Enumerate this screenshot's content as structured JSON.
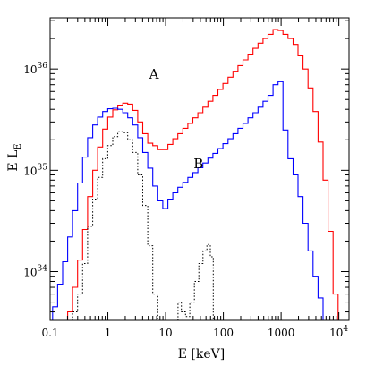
{
  "chart_data": {
    "type": "line",
    "style": "step",
    "xscale": "log",
    "yscale": "log",
    "xlabel": "E [keV]",
    "ylabel_main": "E L",
    "ylabel_sub": "E",
    "xlim": [
      0.1,
      15000
    ],
    "ylim": [
      3.3e+33,
      3.2e+36
    ],
    "xticks": [
      {
        "value": 0.1,
        "label": "0.1",
        "sup": ""
      },
      {
        "value": 1,
        "label": "1",
        "sup": ""
      },
      {
        "value": 10,
        "label": "10",
        "sup": ""
      },
      {
        "value": 100,
        "label": "100",
        "sup": ""
      },
      {
        "value": 1000,
        "label": "1000",
        "sup": ""
      },
      {
        "value": 10000,
        "label": "10",
        "sup": "4"
      }
    ],
    "yticks": [
      {
        "value": 1e+34,
        "label": "10",
        "sup": "34"
      },
      {
        "value": 1e+35,
        "label": "10",
        "sup": "35"
      },
      {
        "value": 1e+36,
        "label": "10",
        "sup": "36"
      }
    ],
    "annotations": [
      {
        "text": "A",
        "x": 6.3,
        "y": 8e+35
      },
      {
        "text": "B",
        "x": 37,
        "y": 1.05e+35
      }
    ],
    "grid": false,
    "legend": "none",
    "series": [
      {
        "color": "#ff0000",
        "style": "solid",
        "x": [
          0.1,
          0.122,
          0.149,
          0.182,
          0.222,
          0.271,
          0.331,
          0.404,
          0.494,
          0.603,
          0.736,
          0.899,
          1.1,
          1.34,
          1.64,
          2.0,
          2.44,
          2.98,
          3.64,
          4.44,
          5.43,
          6.63,
          8.09,
          9.88,
          12.1,
          14.7,
          18.0,
          22.0,
          26.8,
          32.7,
          40.0,
          48.8,
          59.6,
          72.8,
          88.9,
          109,
          133,
          162,
          198,
          242,
          295,
          360,
          440,
          537,
          656,
          801,
          978,
          1190,
          1460,
          1780,
          2170,
          2650,
          3240,
          3950,
          4830,
          5900,
          7200,
          8790,
          10700
        ],
        "y": [
          3e+33,
          3e+33,
          3e+33,
          3e+33,
          4e+33,
          7e+33,
          1.3e+34,
          2.6e+34,
          5.5e+34,
          1e+35,
          1.7e+35,
          2.55e+35,
          3.35e+35,
          3.95e+35,
          4.4e+35,
          4.6e+35,
          4.5e+35,
          3.9e+35,
          3e+35,
          2.3e+35,
          1.85e+35,
          1.75e+35,
          1.6e+35,
          1.6e+35,
          1.8e+35,
          2.05e+35,
          2.3e+35,
          2.6e+35,
          2.9e+35,
          3.3e+35,
          3.7e+35,
          4.2e+35,
          4.8e+35,
          5.5e+35,
          6.3e+35,
          7.2e+35,
          8.3e+35,
          9.5e+35,
          1.08e+36,
          1.23e+36,
          1.4e+36,
          1.6e+36,
          1.8e+36,
          2e+36,
          2.2e+36,
          2.45e+36,
          2.4e+36,
          2.2e+36,
          2e+36,
          1.75e+36,
          1.35e+36,
          1e+36,
          6.5e+35,
          3.8e+35,
          1.9e+35,
          8e+34,
          2.5e+34,
          6e+33,
          3e+33
        ]
      },
      {
        "color": "#0000ff",
        "style": "solid",
        "x": [
          0.1,
          0.122,
          0.149,
          0.182,
          0.222,
          0.271,
          0.331,
          0.404,
          0.494,
          0.603,
          0.736,
          0.899,
          1.1,
          1.34,
          1.64,
          2.0,
          2.44,
          2.98,
          3.64,
          4.44,
          5.43,
          6.63,
          8.09,
          9.88,
          12.1,
          14.7,
          18.0,
          22.0,
          26.8,
          32.7,
          40.0,
          48.8,
          59.6,
          72.8,
          88.9,
          109,
          133,
          162,
          198,
          242,
          295,
          360,
          440,
          537,
          656,
          801,
          978,
          1190,
          1460,
          1780,
          2170,
          2650,
          3240,
          3950,
          4830,
          5900
        ],
        "y": [
          3.3e+33,
          4.5e+33,
          7.5e+33,
          1.25e+34,
          2.2e+34,
          4e+34,
          7.5e+34,
          1.35e+35,
          2.1e+35,
          2.8e+35,
          3.35e+35,
          3.8e+35,
          4.05e+35,
          4.1e+35,
          4e+35,
          3.7e+35,
          3.3e+35,
          2.8e+35,
          2.1e+35,
          1.5e+35,
          1.05e+35,
          7e+34,
          5e+34,
          4.2e+34,
          5.2e+34,
          6e+34,
          6.8e+34,
          7.6e+34,
          8.5e+34,
          9.5e+34,
          1.06e+35,
          1.18e+35,
          1.32e+35,
          1.47e+35,
          1.64e+35,
          1.83e+35,
          2.05e+35,
          2.3e+35,
          2.6e+35,
          2.9e+35,
          3.3e+35,
          3.7e+35,
          4.2e+35,
          4.8e+35,
          5.5e+35,
          7e+35,
          7.5e+35,
          2.5e+35,
          1.3e+35,
          9e+34,
          5.5e+34,
          3e+34,
          1.6e+34,
          9e+33,
          5.5e+33,
          3e+33
        ]
      },
      {
        "color": "#000000",
        "style": "dotted",
        "x": [
          0.1,
          0.122,
          0.149,
          0.182,
          0.222,
          0.271,
          0.331,
          0.404,
          0.494,
          0.603,
          0.736,
          0.899,
          1.1,
          1.34,
          1.64,
          2.0,
          2.44,
          2.98,
          3.64,
          4.44,
          5.43,
          6.63,
          8.09
        ],
        "y": [
          3e+33,
          3e+33,
          3e+33,
          3e+33,
          3e+33,
          4e+33,
          6e+33,
          1.2e+34,
          2.8e+34,
          5.2e+34,
          8.5e+34,
          1.3e+35,
          1.75e+35,
          2.15e+35,
          2.4e+35,
          2.35e+35,
          2e+35,
          1.5e+35,
          9e+34,
          4.5e+34,
          1.8e+34,
          6e+33,
          3e+33
        ]
      },
      {
        "color": "#000000",
        "style": "dotted",
        "x": [
          15.5,
          17.3,
          20.4,
          24.0,
          28.8,
          34.5,
          41.0,
          48.0,
          56.0,
          63.0,
          71.0
        ],
        "y": [
          3e+33,
          5e+33,
          4e+33,
          3.6e+33,
          5e+33,
          8e+33,
          1.2e+34,
          1.6e+34,
          1.85e+34,
          1.4e+34,
          3e+33
        ]
      }
    ]
  }
}
